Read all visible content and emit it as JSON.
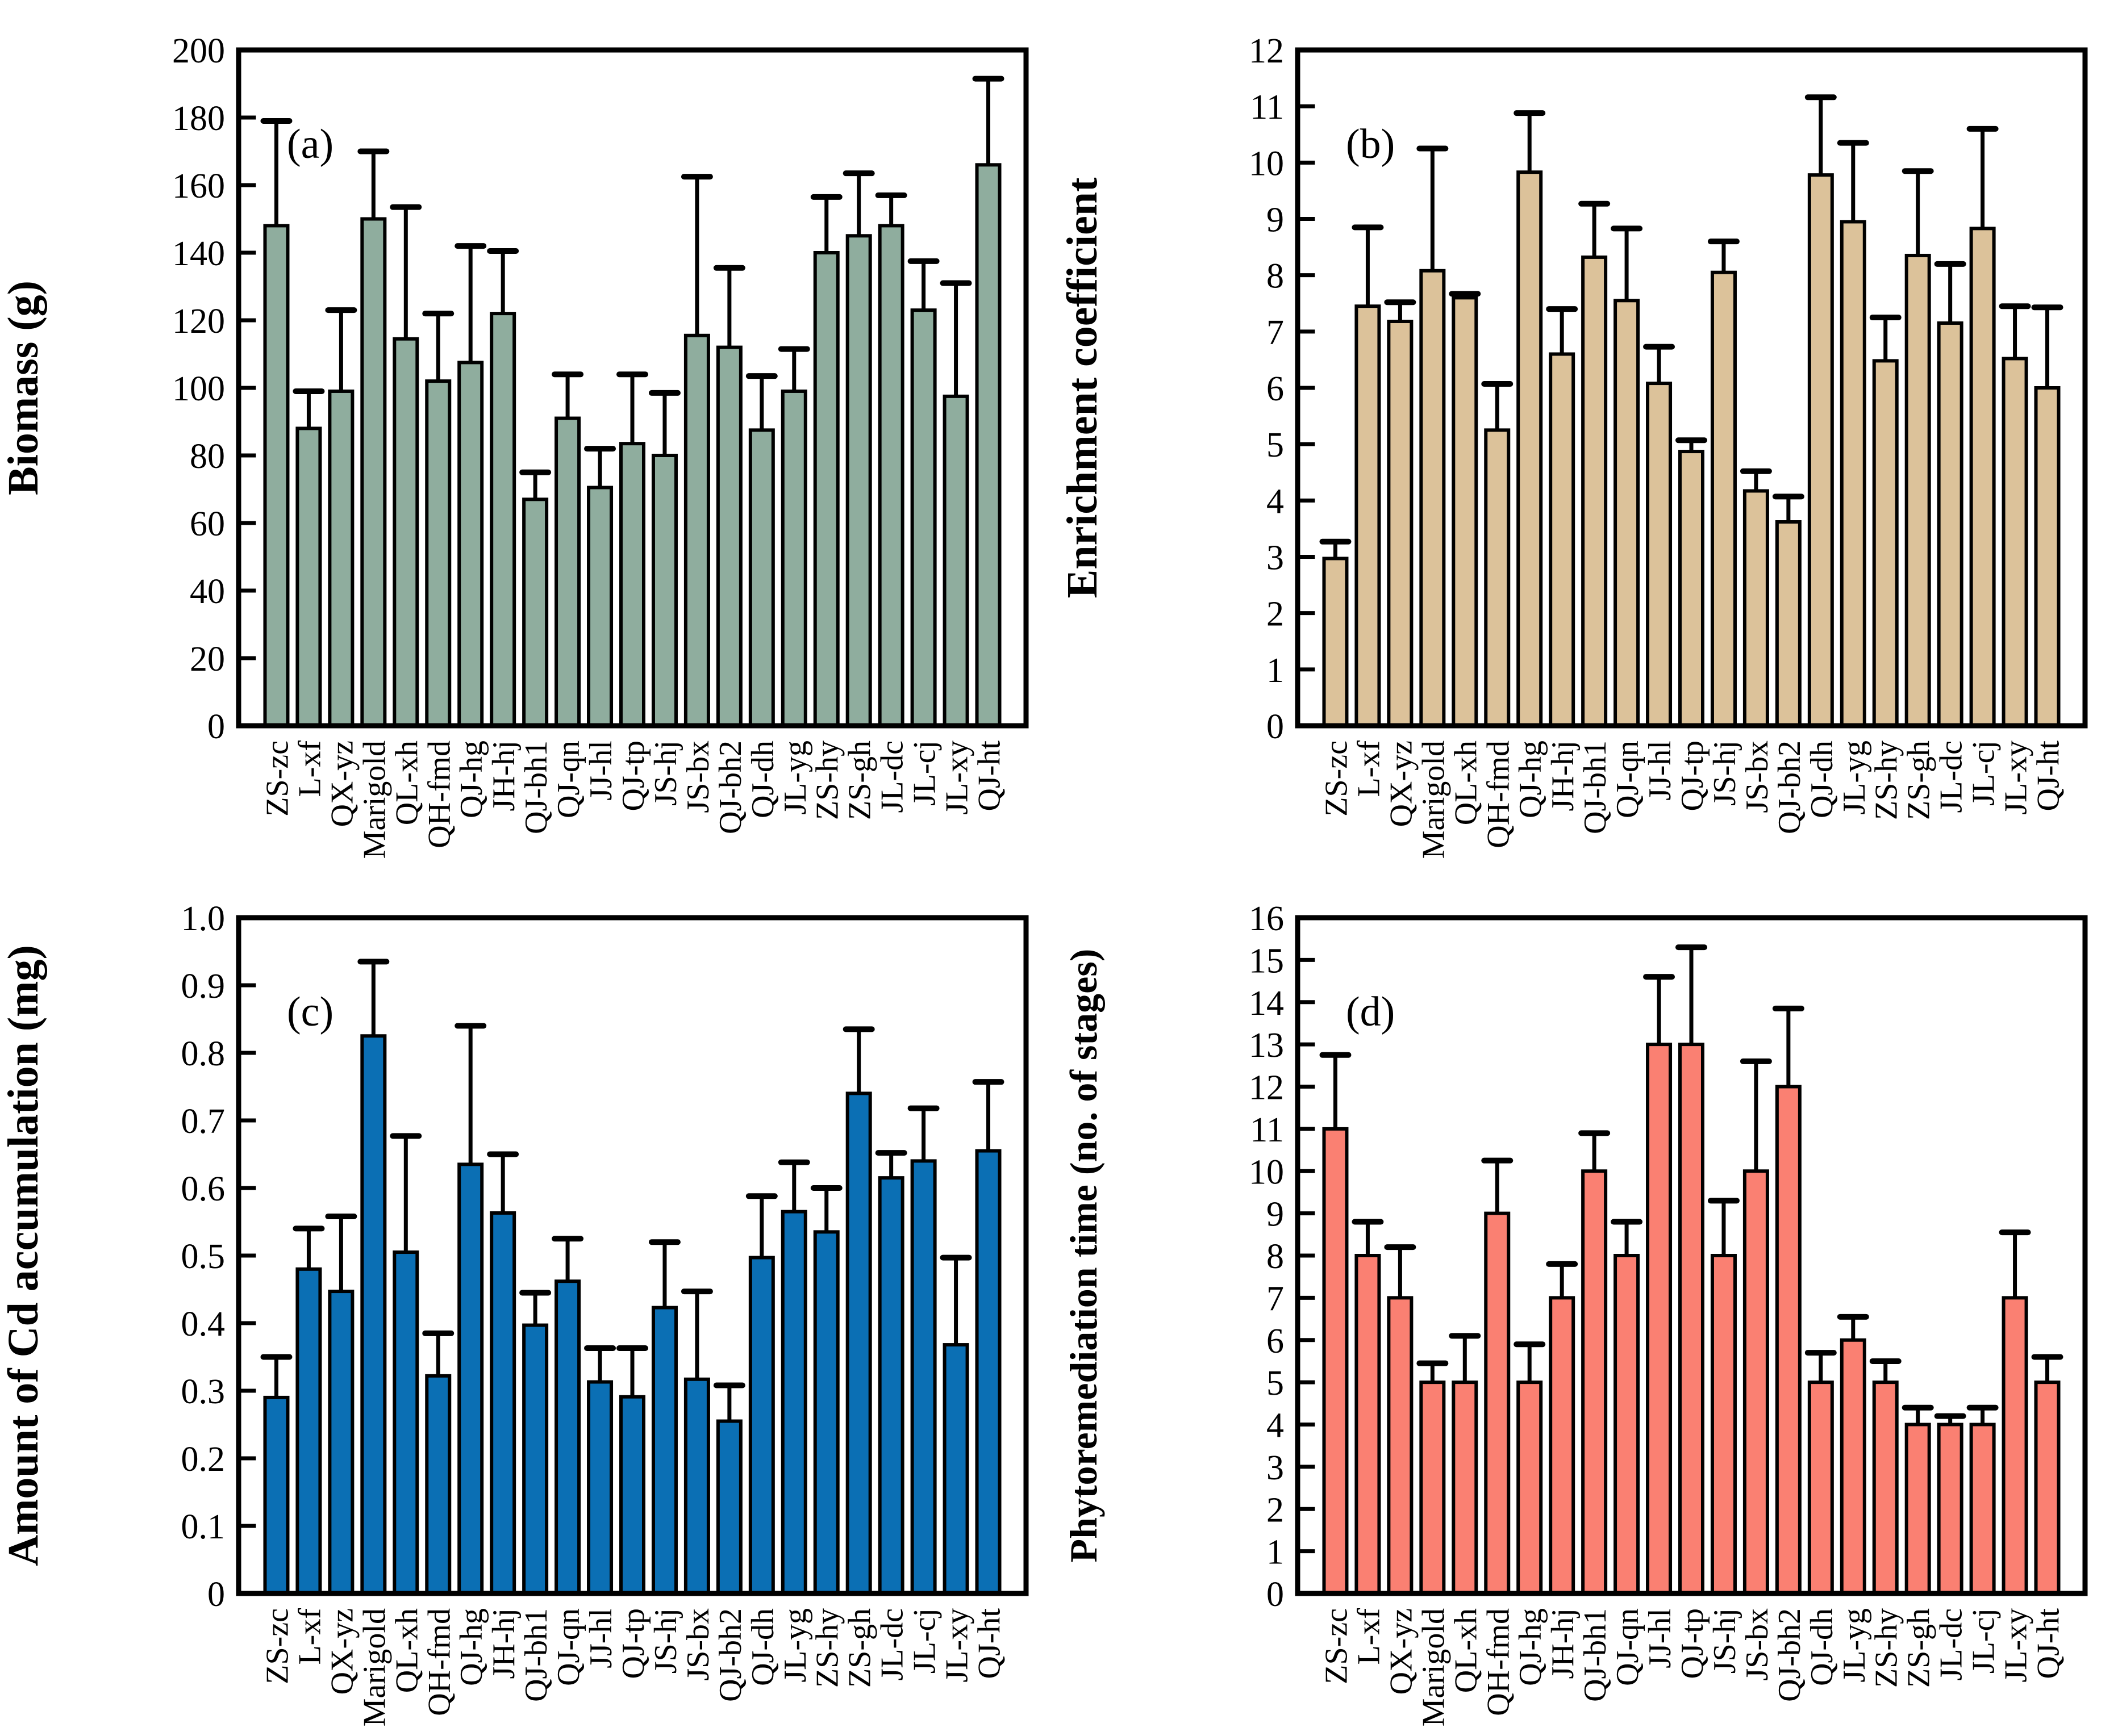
{
  "figure_background": "#ffffff",
  "axis_color": "#000000",
  "chart_data": [
    {
      "type": "bar",
      "panel": "a",
      "panel_label": "(a)",
      "xlabel": "",
      "ylabel": "Biomass (g)",
      "ylim": [
        0,
        200
      ],
      "ytick_step": 20,
      "ytick_decimals": 0,
      "grid": "off",
      "legend": "none",
      "bar_color": "#8FAD9E",
      "bar_edge_color": "#000000",
      "error_color": "#000000",
      "categories": [
        "ZS-zc",
        "L-xf",
        "QX-yz",
        "Marigold",
        "QL-xh",
        "QH-fmd",
        "QJ-hg",
        "JH-hj",
        "QJ-bh1",
        "QJ-qn",
        "JJ-hl",
        "QJ-tp",
        "JS-hj",
        "JS-bx",
        "QJ-bh2",
        "QJ-dh",
        "JL-yg",
        "ZS-hy",
        "ZS-gh",
        "JL-dc",
        "JL-cj",
        "JL-xy",
        "QJ-ht"
      ],
      "values": [
        148,
        88,
        99,
        150,
        114.5,
        102,
        107.5,
        122,
        67,
        91,
        70.5,
        83.5,
        80,
        115.5,
        112,
        87.5,
        99,
        140,
        145,
        148,
        123,
        97.5,
        166
      ],
      "error_plus": [
        31,
        11,
        24,
        20,
        39,
        20,
        34.5,
        18.5,
        8,
        13,
        11.5,
        20.5,
        18.5,
        47,
        23.5,
        16,
        12.5,
        16.5,
        18.5,
        9,
        14.5,
        33.5,
        25.5
      ]
    },
    {
      "type": "bar",
      "panel": "b",
      "panel_label": "(b)",
      "xlabel": "",
      "ylabel": "Enrichment coefficient",
      "ylim": [
        0,
        12
      ],
      "ytick_step": 1,
      "ytick_decimals": 0,
      "grid": "off",
      "legend": "none",
      "bar_color": "#DCC29A",
      "bar_edge_color": "#000000",
      "error_color": "#000000",
      "categories": [
        "ZS-zc",
        "L-xf",
        "QX-yz",
        "Marigold",
        "QL-xh",
        "QH-fmd",
        "QJ-hg",
        "JH-hj",
        "QJ-bh1",
        "QJ-qn",
        "JJ-hl",
        "QJ-tp",
        "JS-hj",
        "JS-bx",
        "QJ-bh2",
        "QJ-dh",
        "JL-yg",
        "ZS-hy",
        "ZS-gh",
        "JL-dc",
        "JL-cj",
        "JL-xy",
        "QJ-ht"
      ],
      "values": [
        2.97,
        7.45,
        7.18,
        8.08,
        7.6,
        5.25,
        9.83,
        6.6,
        8.32,
        7.55,
        6.08,
        4.87,
        8.05,
        4.17,
        3.62,
        9.78,
        8.95,
        6.48,
        8.35,
        7.15,
        8.83,
        6.52,
        6.0
      ],
      "error_plus": [
        0.3,
        1.4,
        0.34,
        2.17,
        0.07,
        0.82,
        1.05,
        0.8,
        0.95,
        1.28,
        0.65,
        0.2,
        0.55,
        0.35,
        0.45,
        1.38,
        1.4,
        0.77,
        1.5,
        1.05,
        1.77,
        0.93,
        1.43
      ]
    },
    {
      "type": "bar",
      "panel": "c",
      "panel_label": "(c)",
      "xlabel": "",
      "ylabel": "Amount of Cd accumulation (mg)",
      "ylim": [
        0,
        1.0
      ],
      "ytick_step": 0.1,
      "ytick_decimals": 1,
      "grid": "off",
      "legend": "none",
      "bar_color": "#0B6FB4",
      "bar_edge_color": "#000000",
      "error_color": "#000000",
      "categories": [
        "ZS-zc",
        "L-xf",
        "QX-yz",
        "Marigold",
        "QL-xh",
        "QH-fmd",
        "QJ-hg",
        "JH-hj",
        "QJ-bh1",
        "QJ-qn",
        "JJ-hl",
        "QJ-tp",
        "JS-hj",
        "JS-bx",
        "QJ-bh2",
        "QJ-dh",
        "JL-yg",
        "ZS-hy",
        "ZS-gh",
        "JL-dc",
        "JL-cj",
        "JL-xy",
        "QJ-ht"
      ],
      "values": [
        0.29,
        0.48,
        0.447,
        0.825,
        0.505,
        0.322,
        0.635,
        0.563,
        0.397,
        0.462,
        0.313,
        0.291,
        0.423,
        0.317,
        0.255,
        0.497,
        0.565,
        0.535,
        0.74,
        0.615,
        0.64,
        0.368,
        0.655
      ],
      "error_plus": [
        0.06,
        0.06,
        0.111,
        0.11,
        0.172,
        0.063,
        0.205,
        0.087,
        0.048,
        0.063,
        0.05,
        0.072,
        0.097,
        0.13,
        0.053,
        0.091,
        0.073,
        0.065,
        0.095,
        0.037,
        0.078,
        0.129,
        0.102
      ]
    },
    {
      "type": "bar",
      "panel": "d",
      "panel_label": "(d)",
      "xlabel": "",
      "ylabel": "Phytoremediation time (no. of stages)",
      "ylabel_size": 68,
      "ylim": [
        0,
        16
      ],
      "ytick_step": 1,
      "ytick_decimals": 0,
      "grid": "off",
      "legend": "none",
      "bar_color": "#FA8072",
      "bar_edge_color": "#000000",
      "error_color": "#000000",
      "categories": [
        "ZS-zc",
        "L-xf",
        "QX-yz",
        "Marigold",
        "QL-xh",
        "QH-fmd",
        "QJ-hg",
        "JH-hj",
        "QJ-bh1",
        "QJ-qn",
        "JJ-hl",
        "QJ-tp",
        "JS-hj",
        "JS-bx",
        "QJ-bh2",
        "QJ-dh",
        "JL-yg",
        "ZS-hy",
        "ZS-gh",
        "JL-dc",
        "JL-cj",
        "JL-xy",
        "QJ-ht"
      ],
      "values": [
        11,
        8,
        7,
        5,
        5,
        9,
        5,
        7,
        10,
        8,
        13,
        13,
        8,
        10,
        12,
        5,
        6,
        5,
        4,
        4,
        4,
        7,
        5
      ],
      "error_plus": [
        1.75,
        0.8,
        1.2,
        0.45,
        1.1,
        1.25,
        0.9,
        0.8,
        0.9,
        0.8,
        1.6,
        2.3,
        1.3,
        2.6,
        1.85,
        0.7,
        0.55,
        0.5,
        0.4,
        0.2,
        0.4,
        1.55,
        0.6
      ]
    }
  ]
}
